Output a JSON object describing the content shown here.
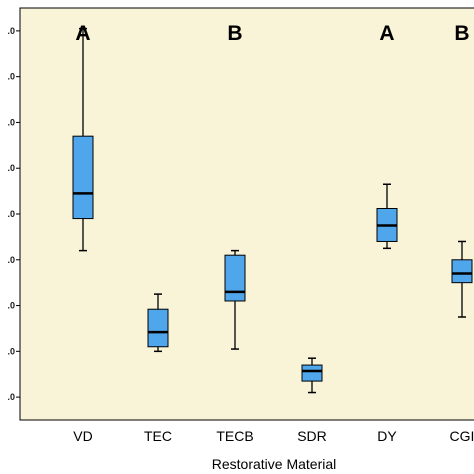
{
  "chart_data": {
    "type": "box",
    "xlabel": "Restorative Material",
    "ylabel": "",
    "yticks": [
      1,
      2,
      3,
      4,
      5,
      6,
      7,
      8,
      9
    ],
    "ytick_labels": [
      ".0",
      ".0",
      ".0",
      ".0",
      ".0",
      ".0",
      ".0",
      ".0",
      ".0"
    ],
    "ylim": [
      0.5,
      9.5
    ],
    "categories": [
      "VD",
      "TEC",
      "TECB",
      "SDR",
      "DY",
      "CGI"
    ],
    "boxes": [
      {
        "category": "VD",
        "min": 4.2,
        "q1": 4.9,
        "median": 5.45,
        "q3": 6.7,
        "max": 9.05
      },
      {
        "category": "TEC",
        "min": 2.0,
        "q1": 2.1,
        "median": 2.42,
        "q3": 2.92,
        "max": 3.25
      },
      {
        "category": "TECB",
        "min": 2.05,
        "q1": 3.1,
        "median": 3.3,
        "q3": 4.1,
        "max": 4.2
      },
      {
        "category": "SDR",
        "min": 1.1,
        "q1": 1.35,
        "median": 1.57,
        "q3": 1.7,
        "max": 1.85
      },
      {
        "category": "DY",
        "min": 4.25,
        "q1": 4.4,
        "median": 4.75,
        "q3": 5.12,
        "max": 5.65
      },
      {
        "category": "CGI",
        "min": 2.75,
        "q1": 3.5,
        "median": 3.7,
        "q3": 4.0,
        "max": 4.4
      }
    ],
    "group_labels": [
      {
        "category": "VD",
        "label": "A"
      },
      {
        "category": "TECB",
        "label": "B"
      },
      {
        "category": "DY",
        "label": "A"
      },
      {
        "category": "CGI",
        "label": "B"
      }
    ],
    "colors": {
      "plot_background": "#f9f4d8",
      "box_fill": "#4fa6ea",
      "box_stroke": "#000000",
      "median": "#000000"
    },
    "grid": false
  }
}
